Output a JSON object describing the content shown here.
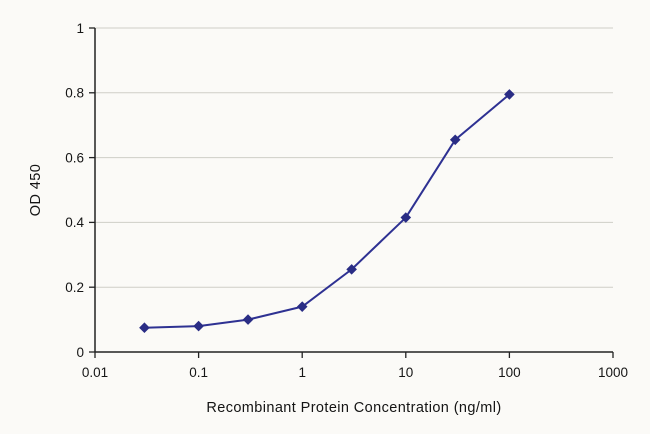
{
  "chart_data": {
    "type": "line",
    "title": "",
    "xlabel": "Recombinant Protein Concentration (ng/ml)",
    "ylabel": "OD 450",
    "x_scale": "log",
    "xlim": [
      0.01,
      1000
    ],
    "ylim": [
      0,
      1
    ],
    "x": [
      0.03,
      0.1,
      0.3,
      1,
      3,
      10,
      30,
      100
    ],
    "y": [
      0.075,
      0.08,
      0.1,
      0.14,
      0.255,
      0.415,
      0.655,
      0.795
    ],
    "x_ticks": [
      0.01,
      0.1,
      1,
      10,
      100,
      1000
    ],
    "x_tick_labels": [
      "0.01",
      "0.1",
      "1",
      "10",
      "100",
      "1000"
    ],
    "y_ticks": [
      0,
      0.2,
      0.4,
      0.6,
      0.8,
      1
    ],
    "y_tick_labels": [
      "0",
      "0.2",
      "0.4",
      "0.6",
      "0.8",
      "1"
    ],
    "grid": "horizontal",
    "legend": "none",
    "marker": "diamond",
    "line_color": "#2e3192",
    "marker_color": "#2a2d85",
    "grid_color": "#cfcec7",
    "axis_color": "#222222",
    "background": "#fbfaf7"
  }
}
